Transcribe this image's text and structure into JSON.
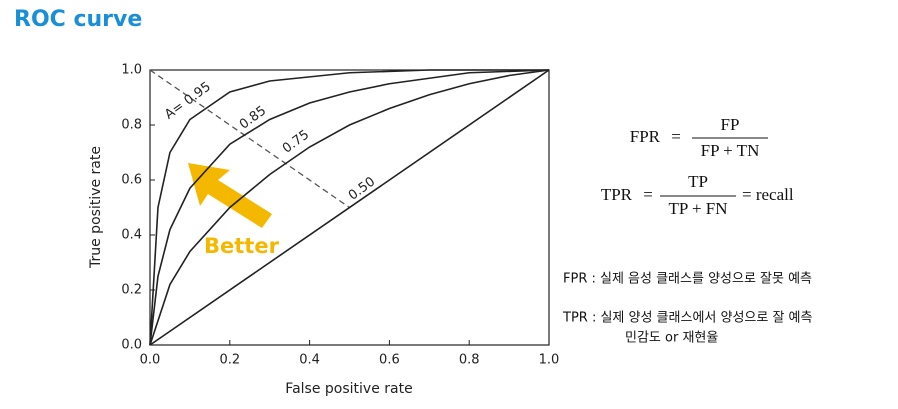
{
  "header": {
    "title": "ROC curve"
  },
  "chart_data": {
    "type": "line",
    "xlabel": "False positive rate",
    "ylabel": "True positive rate",
    "xlim": [
      0,
      1
    ],
    "ylim": [
      0,
      1
    ],
    "xticks": [
      {
        "value": 0,
        "label": "0.0"
      },
      0.2,
      0.4,
      0.6,
      0.8,
      {
        "value": 1,
        "label": "1.0"
      }
    ],
    "yticks": [
      {
        "value": 0,
        "label": "0.0"
      },
      0.2,
      0.4,
      0.6,
      0.8,
      {
        "value": 1,
        "label": "1.0"
      }
    ],
    "series": [
      {
        "name": "A= 0.95",
        "color": "#222222",
        "x": [
          0,
          0.02,
          0.05,
          0.1,
          0.2,
          0.3,
          0.5,
          0.7,
          1
        ],
        "values": [
          0,
          0.5,
          0.7,
          0.82,
          0.92,
          0.96,
          0.99,
          1,
          1
        ]
      },
      {
        "name": "0.85",
        "color": "#222222",
        "x": [
          0,
          0.02,
          0.05,
          0.1,
          0.2,
          0.3,
          0.4,
          0.5,
          0.6,
          0.8,
          1
        ],
        "values": [
          0,
          0.25,
          0.42,
          0.57,
          0.73,
          0.82,
          0.88,
          0.92,
          0.95,
          0.99,
          1
        ]
      },
      {
        "name": "0.75",
        "color": "#222222",
        "x": [
          0,
          0.05,
          0.1,
          0.2,
          0.3,
          0.4,
          0.5,
          0.6,
          0.7,
          0.8,
          0.9,
          1
        ],
        "values": [
          0,
          0.22,
          0.34,
          0.5,
          0.62,
          0.72,
          0.8,
          0.86,
          0.91,
          0.95,
          0.98,
          1
        ]
      },
      {
        "name": "0.50",
        "color": "#222222",
        "x": [
          0,
          1
        ],
        "values": [
          0,
          1
        ]
      }
    ],
    "reference_line": {
      "x": [
        0,
        0.5
      ],
      "values": [
        1,
        0.5
      ],
      "color": "#555555"
    },
    "annotation": {
      "text": "Better",
      "color": "#f5b800"
    }
  },
  "formulas": {
    "fpr": {
      "lhs": "FPR",
      "eq": "=",
      "num": "FP",
      "den": "FP + TN"
    },
    "tpr": {
      "lhs": "TPR",
      "eq": "=",
      "num": "TP",
      "den": "TP + FN",
      "rhs": "= recall"
    }
  },
  "notes": [
    "FPR : 실제 음성 클래스를 양성으로 잘못 예측",
    "TPR : 실제 양성 클래스에서 양성으로 잘 예측",
    "민감도 or 재현율"
  ]
}
